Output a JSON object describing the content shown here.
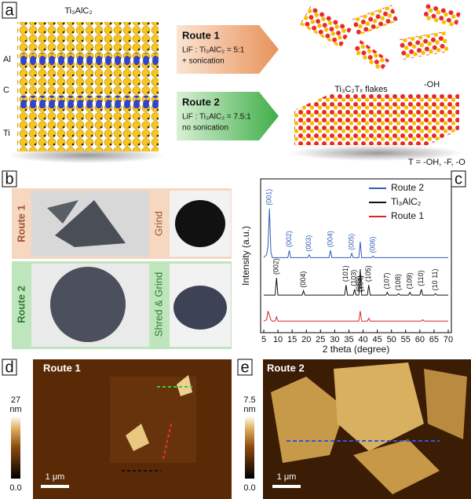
{
  "panels": {
    "a": {
      "label": "a",
      "structure_label": "Ti₃AlC₂",
      "layer_labels": [
        "Al",
        "C",
        "Ti"
      ],
      "route1": {
        "title": "Route 1",
        "lines": [
          "LiF : Ti₃AlC₂ = 5:1",
          "+ sonication"
        ]
      },
      "route2": {
        "title": "Route 2",
        "lines": [
          "LiF : Ti₃AlC₂ = 7.5:1",
          "no sonication"
        ]
      },
      "product_label": "Ti₃C₂Tₓ flakes",
      "oh_label": "-OH",
      "termination": "T = -OH, -F, -O"
    },
    "b": {
      "label": "b",
      "route1": {
        "title": "Route 1",
        "step": "Grind"
      },
      "route2": {
        "title": "Route 2",
        "step": "Shred & Grind"
      }
    },
    "c": {
      "label": "c"
    },
    "d": {
      "label": "d",
      "title": "Route 1",
      "scale_max": "27",
      "unit": "nm",
      "scale_min": "0.0",
      "scale_bar": "1 μm"
    },
    "e": {
      "label": "e",
      "title": "Route 2",
      "scale_max": "7.5",
      "unit": "nm",
      "scale_min": "0.0",
      "scale_bar": "1 μm"
    }
  },
  "chart_data": {
    "type": "line",
    "x_label": "2 theta (degree)",
    "y_label": "Intensity (a.u.)",
    "xlim": [
      5,
      70
    ],
    "xticks": [
      5,
      10,
      15,
      20,
      25,
      30,
      35,
      40,
      45,
      50,
      55,
      60,
      65,
      70
    ],
    "ylim": [
      0,
      100
    ],
    "legend": "upper right",
    "series": [
      {
        "name": "Route 2",
        "color": "#2f5fb8",
        "x": [
          5,
          6,
          6.5,
          7,
          7.5,
          8,
          10,
          13.5,
          14,
          14.5,
          20.5,
          21,
          21.5,
          28,
          28.5,
          29,
          35.5,
          36,
          36.5,
          38.5,
          39,
          39.5,
          43,
          43.5,
          44,
          50,
          60,
          70
        ],
        "values": [
          52,
          54,
          60,
          86,
          56,
          52,
          52,
          52,
          57,
          52,
          52,
          54,
          52,
          52,
          57,
          52,
          52,
          55,
          52,
          52,
          63,
          52,
          52,
          53,
          52,
          52,
          52,
          52
        ],
        "peak_labels": [
          {
            "text": "(001)",
            "x": 7
          },
          {
            "text": "(002)",
            "x": 14
          },
          {
            "text": "(003)",
            "x": 21
          },
          {
            "text": "(004)",
            "x": 28.5
          },
          {
            "text": "(005)",
            "x": 36
          },
          {
            "text": "(006)",
            "x": 43.5
          }
        ]
      },
      {
        "name": "Ti₃AlC₂",
        "color": "#111111",
        "x": [
          5,
          9,
          9.5,
          10,
          18.5,
          19,
          19.5,
          33.5,
          34,
          34.5,
          36.5,
          37,
          37.5,
          38.5,
          39,
          39.5,
          41.5,
          42,
          42.5,
          48,
          48.5,
          49,
          52,
          52.5,
          53,
          56,
          56.5,
          57,
          60,
          60.5,
          61,
          65,
          65.5,
          66,
          70
        ],
        "values": [
          26,
          26,
          38,
          26,
          26,
          29,
          26,
          26,
          33,
          26,
          26,
          30,
          26,
          26,
          44,
          26,
          26,
          33,
          26,
          26,
          28,
          26,
          26,
          27,
          26,
          26,
          28,
          26,
          26,
          30,
          26,
          26,
          27,
          26,
          26
        ],
        "peak_labels": [
          {
            "text": "(002)",
            "x": 9.5
          },
          {
            "text": "(004)",
            "x": 19
          },
          {
            "text": "(101)",
            "x": 34
          },
          {
            "text": "(103)",
            "x": 36.8
          },
          {
            "text": "(008)",
            "x": 38.6
          },
          {
            "text": "(104)",
            "x": 39.4
          },
          {
            "text": "(105)",
            "x": 42
          },
          {
            "text": "(107)",
            "x": 48.5
          },
          {
            "text": "(108)",
            "x": 52.5
          },
          {
            "text": "(109)",
            "x": 56.5
          },
          {
            "text": "(110)",
            "x": 60.5
          },
          {
            "text": "(10 11)",
            "x": 65.5
          }
        ]
      },
      {
        "name": "Route 1",
        "color": "#d62728",
        "x": [
          5,
          6,
          6.5,
          7,
          7.5,
          8,
          9,
          9.5,
          10,
          38.5,
          39,
          39.5,
          41.5,
          42,
          42.5,
          60.5,
          61,
          61.5,
          70
        ],
        "values": [
          8,
          9,
          15,
          12,
          9,
          8,
          8,
          11,
          8,
          8,
          15,
          8,
          8,
          10,
          8,
          8,
          9,
          8,
          8
        ]
      }
    ]
  }
}
